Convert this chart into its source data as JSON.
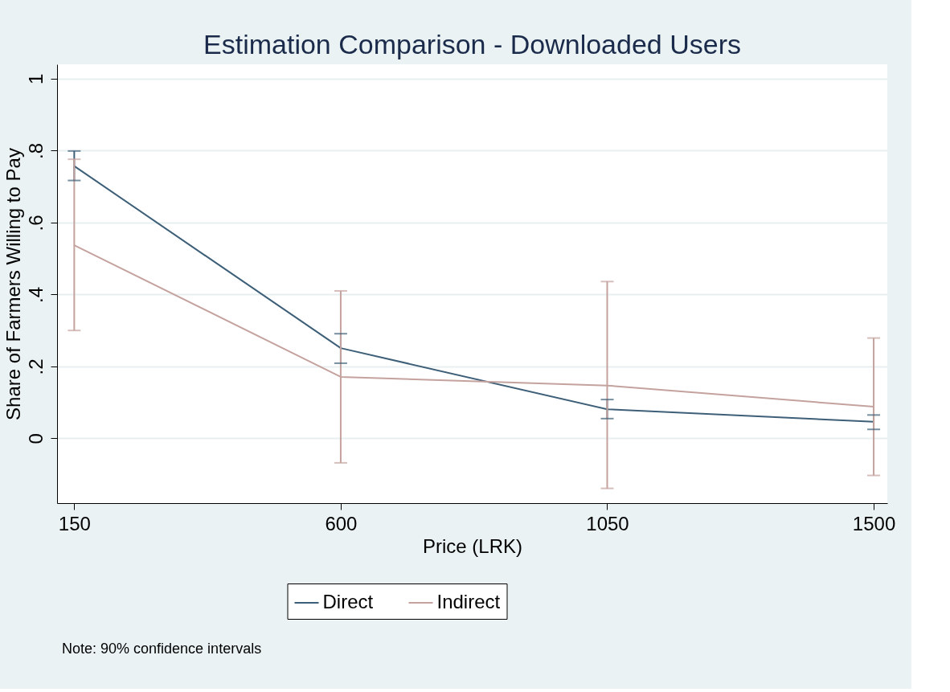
{
  "chart_data": {
    "type": "line",
    "title": "Estimation Comparison - Downloaded Users",
    "xlabel": "Price (LRK)",
    "ylabel": "Share of Farmers Willing to Pay",
    "x": [
      150,
      600,
      1050,
      1500
    ],
    "series": [
      {
        "name": "Direct",
        "color": "#3e5f78",
        "values": [
          0.757,
          0.251,
          0.081,
          0.046
        ],
        "errors": [
          [
            0.717,
            0.799
          ],
          [
            0.209,
            0.291
          ],
          [
            0.055,
            0.108
          ],
          [
            0.025,
            0.065
          ]
        ]
      },
      {
        "name": "Indirect",
        "color": "#c4a29e",
        "values": [
          0.537,
          0.171,
          0.147,
          0.088
        ],
        "errors": [
          [
            0.3,
            0.776
          ],
          [
            -0.068,
            0.41
          ],
          [
            -0.139,
            0.436
          ],
          [
            -0.103,
            0.279
          ]
        ]
      }
    ],
    "xlim": [
      121,
      1523
    ],
    "xticks": [
      150,
      600,
      1050,
      1500
    ],
    "ylim": [
      -0.18,
      1.04
    ],
    "yticks": [
      {
        "value": 0,
        "label": "0"
      },
      {
        "value": 0.2,
        "label": ".2"
      },
      {
        "value": 0.4,
        "label": ".4"
      },
      {
        "value": 0.6,
        "label": ".6"
      },
      {
        "value": 0.8,
        "label": ".8"
      },
      {
        "value": 1,
        "label": "1"
      }
    ],
    "grid": "y",
    "legend": "bottom",
    "marker": "none",
    "line_style": "solid",
    "annotations": [
      "Note: 90% confidence intervals"
    ]
  }
}
